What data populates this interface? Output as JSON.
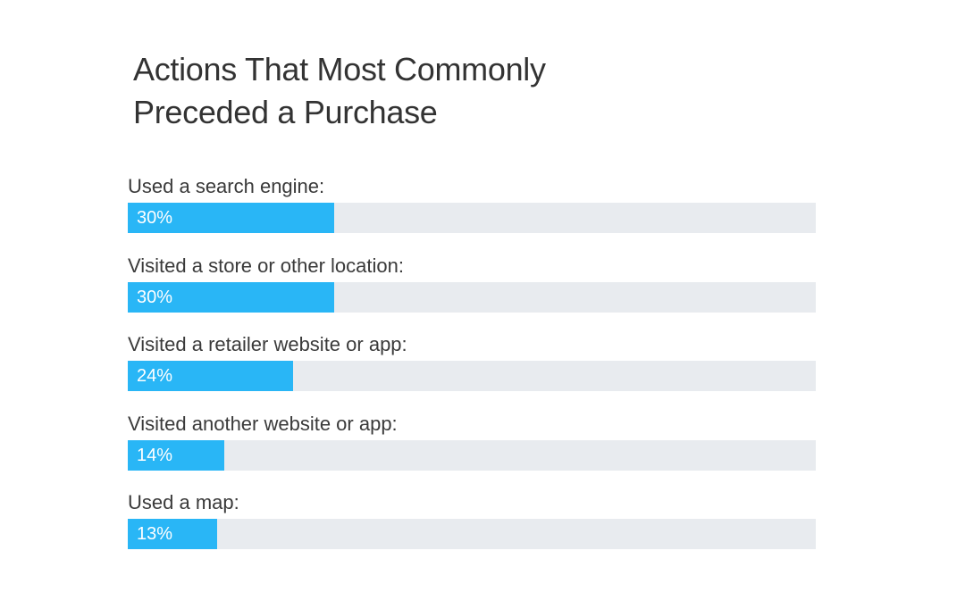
{
  "chart_data": {
    "type": "bar",
    "orientation": "horizontal",
    "title_lines": [
      "Actions That Most Commonly",
      "Preceded a Purchase"
    ],
    "categories": [
      "Used a search engine:",
      "Visited a store or other location:",
      "Visited a retailer website or app:",
      "Visited another website or app:",
      "Used a map:"
    ],
    "values": [
      30,
      30,
      24,
      14,
      13
    ],
    "value_labels": [
      "30%",
      "30%",
      "24%",
      "14%",
      "13%"
    ],
    "xlim": [
      0,
      100
    ],
    "bar_color": "#29b6f6",
    "track_color": "#e8ebef",
    "grid": false
  }
}
